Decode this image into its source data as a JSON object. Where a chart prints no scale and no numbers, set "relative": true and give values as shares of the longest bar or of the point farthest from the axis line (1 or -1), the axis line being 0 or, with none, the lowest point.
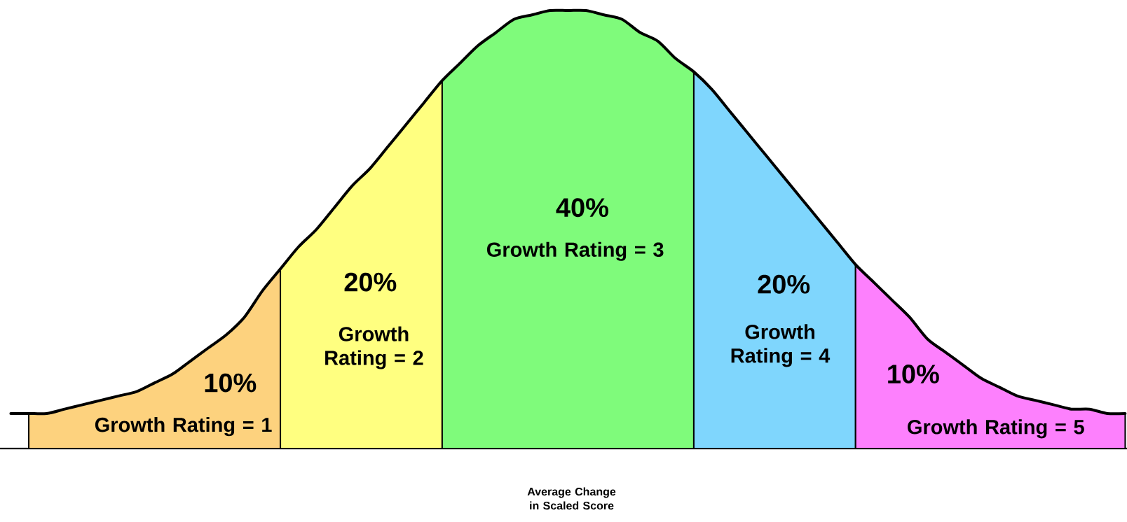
{
  "chart_data": {
    "type": "area",
    "relative": true,
    "categories": [
      null,
      null,
      null,
      null,
      null,
      null,
      null,
      null,
      null,
      null,
      null,
      null,
      null,
      null,
      null,
      null,
      null,
      null,
      null,
      null,
      null,
      null,
      null,
      null,
      null,
      null,
      null,
      null,
      null,
      null,
      null,
      null,
      null,
      null,
      null,
      null,
      null,
      null,
      null,
      null,
      null,
      null,
      null,
      null,
      null,
      null,
      null,
      null,
      null,
      null,
      null,
      null,
      null,
      null,
      null,
      null,
      null,
      null,
      null,
      null,
      null,
      null,
      null
    ],
    "xlabel": "Average Change in Scaled Score",
    "annotations": [
      "10%",
      "20%",
      "40%",
      "20%",
      "10%"
    ],
    "series": [
      {
        "name": "Growth Rating = 1",
        "color": "#fdd27e",
        "values": [
          null,
          0.08,
          0.08,
          0.09,
          0.1,
          0.11,
          0.12,
          0.13,
          0.15,
          0.17,
          0.2,
          0.23,
          0.26,
          0.3,
          0.36,
          0.41,
          null,
          null,
          null,
          null,
          null,
          null,
          null,
          null,
          null,
          null,
          null,
          null,
          null,
          null,
          null,
          null,
          null,
          null,
          null,
          null,
          null,
          null,
          null,
          null,
          null,
          null,
          null,
          null,
          null,
          null,
          null,
          null,
          null,
          null,
          null,
          null,
          null,
          null,
          null,
          null,
          null,
          null,
          null,
          null,
          null,
          null,
          null
        ]
      },
      {
        "name": "Growth Rating = 2",
        "color": "#ffff80",
        "values": [
          null,
          null,
          null,
          null,
          null,
          null,
          null,
          null,
          null,
          null,
          null,
          null,
          null,
          null,
          null,
          0.41,
          0.46,
          0.5,
          0.55,
          0.6,
          0.64,
          0.69,
          0.74,
          0.79,
          0.84,
          null,
          null,
          null,
          null,
          null,
          null,
          null,
          null,
          null,
          null,
          null,
          null,
          null,
          null,
          null,
          null,
          null,
          null,
          null,
          null,
          null,
          null,
          null,
          null,
          null,
          null,
          null,
          null,
          null,
          null,
          null,
          null,
          null,
          null,
          null,
          null,
          null,
          null
        ]
      },
      {
        "name": "Growth Rating = 3",
        "color": "#7ffb7b",
        "values": [
          null,
          null,
          null,
          null,
          null,
          null,
          null,
          null,
          null,
          null,
          null,
          null,
          null,
          null,
          null,
          null,
          null,
          null,
          null,
          null,
          null,
          null,
          null,
          null,
          0.84,
          0.88,
          0.92,
          0.95,
          0.98,
          0.99,
          1,
          1,
          1,
          0.99,
          0.98,
          0.95,
          0.93,
          0.89,
          0.86,
          null,
          null,
          null,
          null,
          null,
          null,
          null,
          null,
          null,
          null,
          null,
          null,
          null,
          null,
          null,
          null,
          null,
          null,
          null,
          null,
          null,
          null,
          null,
          null
        ]
      },
      {
        "name": "Growth Rating = 4",
        "color": "#7fd6fd",
        "values": [
          null,
          null,
          null,
          null,
          null,
          null,
          null,
          null,
          null,
          null,
          null,
          null,
          null,
          null,
          null,
          null,
          null,
          null,
          null,
          null,
          null,
          null,
          null,
          null,
          null,
          null,
          null,
          null,
          null,
          null,
          null,
          null,
          null,
          null,
          null,
          null,
          null,
          null,
          0.86,
          0.82,
          0.77,
          0.72,
          0.67,
          0.62,
          0.57,
          0.52,
          0.47,
          0.42,
          null,
          null,
          null,
          null,
          null,
          null,
          null,
          null,
          null,
          null,
          null,
          null,
          null,
          null,
          null
        ]
      },
      {
        "name": "Growth Rating = 5",
        "color": "#fd80fd",
        "values": [
          null,
          null,
          null,
          null,
          null,
          null,
          null,
          null,
          null,
          null,
          null,
          null,
          null,
          null,
          null,
          null,
          null,
          null,
          null,
          null,
          null,
          null,
          null,
          null,
          null,
          null,
          null,
          null,
          null,
          null,
          null,
          null,
          null,
          null,
          null,
          null,
          null,
          null,
          null,
          null,
          null,
          null,
          null,
          null,
          null,
          null,
          null,
          0.42,
          0.38,
          0.34,
          0.3,
          0.25,
          0.22,
          0.19,
          0.16,
          0.14,
          0.12,
          0.11,
          0.1,
          0.09,
          0.09,
          0.08,
          0.08
        ]
      },
      {
        "type": "line",
        "color": "#000000",
        "values": [
          0.08,
          0.08,
          0.08,
          0.09,
          0.1,
          0.11,
          0.12,
          0.13,
          0.15,
          0.17,
          0.2,
          0.23,
          0.26,
          0.3,
          0.36,
          0.41,
          0.46,
          0.5,
          0.55,
          0.6,
          0.64,
          0.69,
          0.74,
          0.79,
          0.84,
          0.88,
          0.92,
          0.95,
          0.98,
          0.99,
          1,
          1,
          1,
          0.99,
          0.98,
          0.95,
          0.93,
          0.89,
          0.86,
          0.82,
          0.77,
          0.72,
          0.67,
          0.62,
          0.57,
          0.52,
          0.47,
          0.42,
          0.38,
          0.34,
          0.3,
          0.25,
          0.22,
          0.19,
          0.16,
          0.14,
          0.12,
          0.11,
          0.1,
          0.09,
          0.09,
          0.08,
          0.08
        ]
      }
    ]
  }
}
